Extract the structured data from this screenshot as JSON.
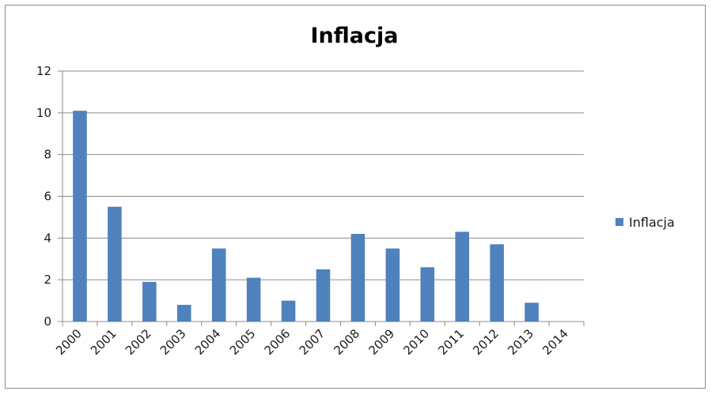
{
  "chart_data": {
    "type": "bar",
    "title": "Inflacja",
    "categories": [
      "2000",
      "2001",
      "2002",
      "2003",
      "2004",
      "2005",
      "2006",
      "2007",
      "2008",
      "2009",
      "2010",
      "2011",
      "2012",
      "2013",
      "2014"
    ],
    "series": [
      {
        "name": "Inflacja",
        "values": [
          10.1,
          5.5,
          1.9,
          0.8,
          3.5,
          2.1,
          1.0,
          2.5,
          4.2,
          3.5,
          2.6,
          4.3,
          3.7,
          0.9,
          null
        ]
      }
    ],
    "ylim": [
      0,
      12
    ],
    "yticks": [
      0,
      2,
      4,
      6,
      8,
      10,
      12
    ],
    "grid": true,
    "legend_position": "right",
    "colors": {
      "bar": "#4f81bd",
      "grid": "#8c8c8c",
      "axis": "#8c8c8c"
    }
  }
}
